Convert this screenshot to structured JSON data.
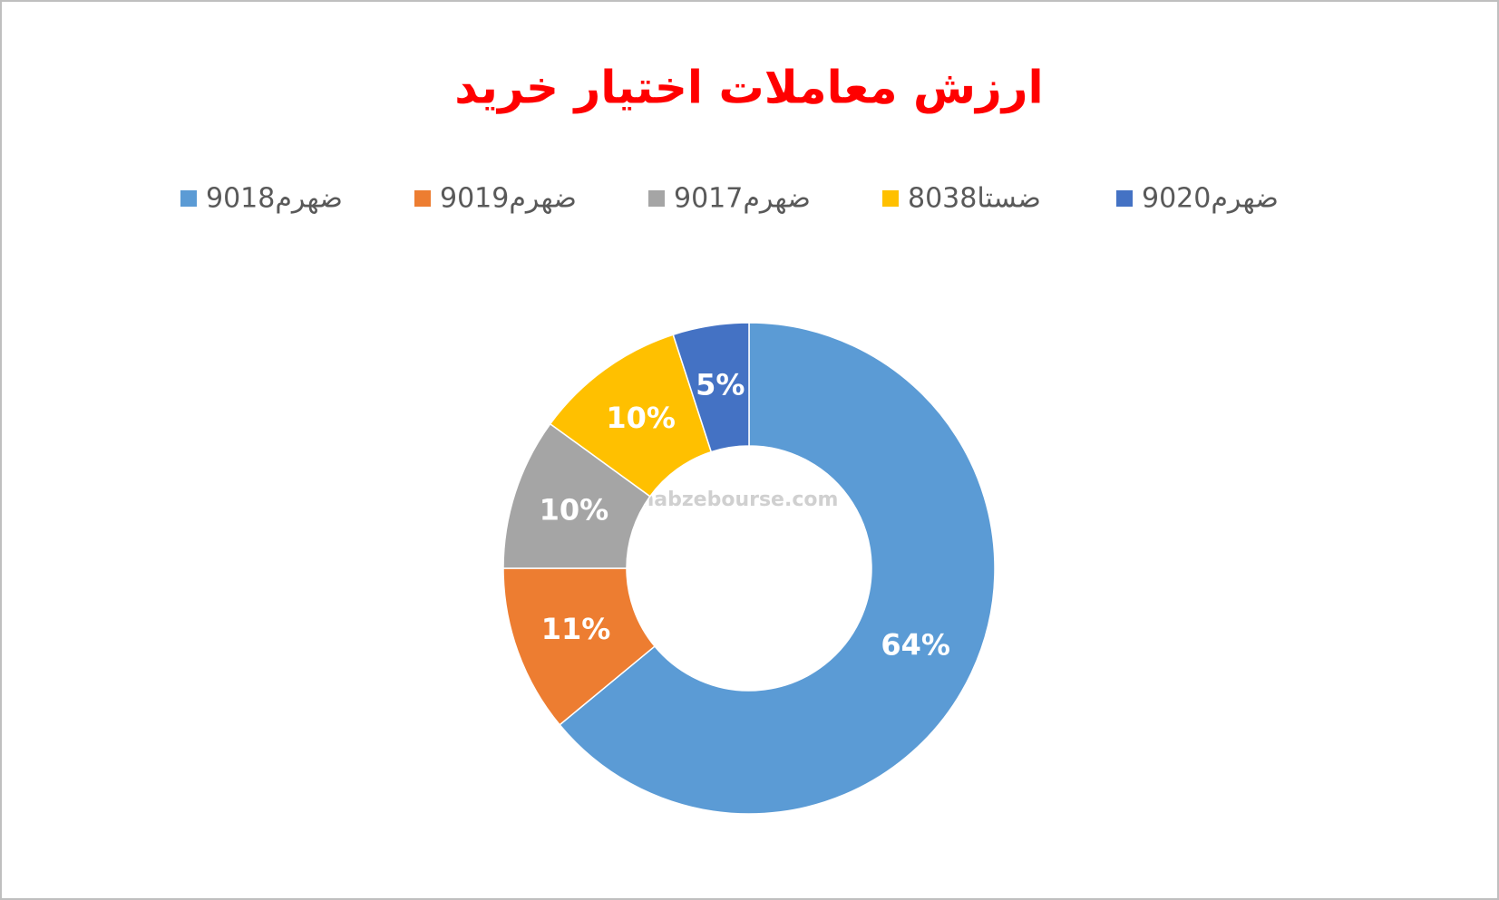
{
  "chart_data": {
    "type": "doughnut",
    "title": "ارزش معاملات اختیار خرید",
    "categories": [
      "ضهرم9018",
      "ضهرم9019",
      "ضهرم9017",
      "ضستا8038",
      "ضهرم9020"
    ],
    "values": [
      64,
      11,
      10,
      10,
      5
    ],
    "value_labels": [
      "64%",
      "11%",
      "10%",
      "10%",
      "5%"
    ],
    "colors": [
      "#5b9bd5",
      "#ed7d31",
      "#a5a5a5",
      "#ffc000",
      "#4472c4"
    ],
    "legend": "top",
    "watermark": "nabzebourse.com"
  }
}
